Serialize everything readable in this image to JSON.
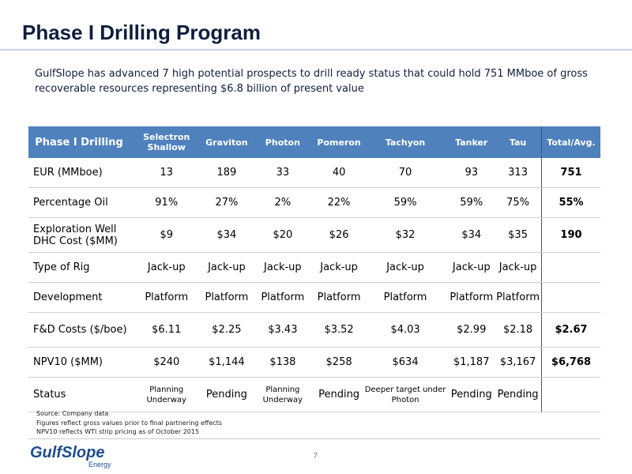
{
  "header": {
    "title": "Phase I Drilling Program",
    "subtitle": "GulfSlope has advanced 7 high potential prospects to drill ready status that could hold 751 MMboe of gross recoverable resources representing $6.8 billion of present value"
  },
  "table": {
    "columns": [
      "Phase I Drilling",
      "Selectron Shallow",
      "Graviton",
      "Photon",
      "Pomeron",
      "Tachyon",
      "Tanker",
      "Tau",
      "Total/Avg."
    ],
    "rows": [
      [
        "EUR (MMboe)",
        "13",
        "189",
        "33",
        "40",
        "70",
        "93",
        "313",
        "751"
      ],
      [
        "Percentage Oil",
        "91%",
        "27%",
        "2%",
        "22%",
        "59%",
        "59%",
        "75%",
        "55%"
      ],
      [
        "Exploration Well DHC Cost ($MM)",
        "$9",
        "$34",
        "$20",
        "$26",
        "$32",
        "$34",
        "$35",
        "190"
      ],
      [
        "Type of Rig",
        "Jack-up",
        "Jack-up",
        "Jack-up",
        "Jack-up",
        "Jack-up",
        "Jack-up",
        "Jack-up",
        null
      ],
      [
        "Development",
        "Platform",
        "Platform",
        "Platform",
        "Platform",
        "Platform",
        "Platform",
        "Platform",
        null
      ],
      [
        "F&D Costs ($/boe)",
        "$6.11",
        "$2.25",
        "$3.43",
        "$3.52",
        "$4.03",
        "$2.99",
        "$2.18",
        "$2.67"
      ],
      [
        "NPV10 ($MM)",
        "$240",
        "$1,144",
        "$138",
        "$258",
        "$634",
        "$1,187",
        "$3,167",
        "$6,768"
      ],
      [
        "Status",
        "Planning Underway",
        "Pending",
        "Planning Underway",
        "Pending",
        "Deeper target under Photon",
        "Pending",
        "Pending",
        null
      ]
    ]
  },
  "footnotes": [
    "Source: Company data",
    "Figures reflect gross values prior to final partnering effects",
    "NPV10 reflects WTI strip pricing as of October 2015"
  ],
  "footer": {
    "logo": "GulfSlope",
    "logo_sub": "Energy",
    "page_number": "7"
  }
}
